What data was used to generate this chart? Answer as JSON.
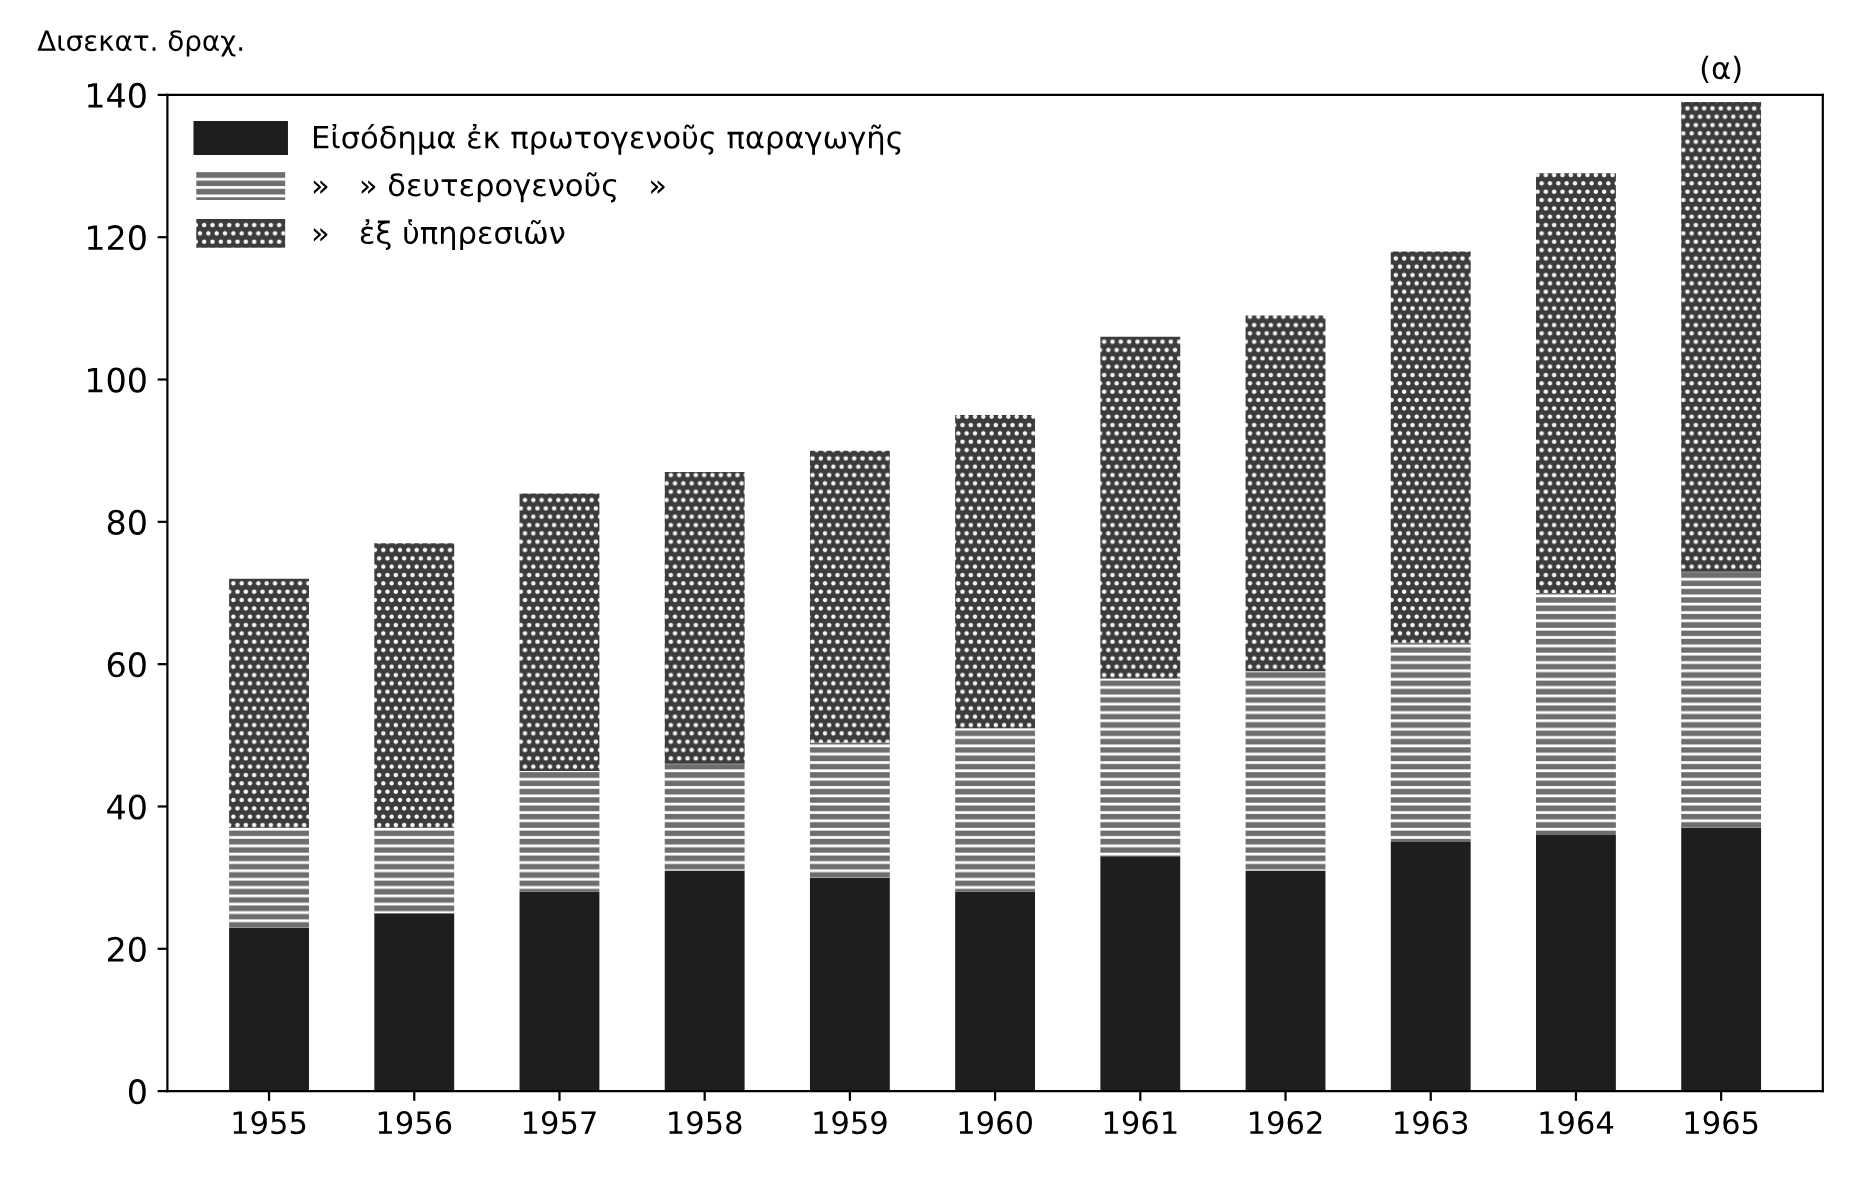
{
  "chart_data": {
    "type": "bar",
    "stacked": true,
    "ylabel": "Δισεκατ. δραχ.",
    "categories": [
      "1955",
      "1956",
      "1957",
      "1958",
      "1959",
      "1960",
      "1961",
      "1962",
      "1963",
      "1964",
      "1965"
    ],
    "series": [
      {
        "name": "Εἰσόδημα ἐκ πρωτογενοῦς παραγωγῆς",
        "color": "#1e1e1e",
        "values": [
          23,
          25,
          28,
          31,
          30,
          28,
          33,
          31,
          35,
          36,
          37
        ]
      },
      {
        "name": "»   » δευτερογενοῦς   »",
        "color": "#6e6e6e",
        "values": [
          14,
          12,
          17,
          15,
          19,
          23,
          25,
          28,
          28,
          34,
          36
        ]
      },
      {
        "name": "»   ἐξ ὑπηρεσιῶν",
        "color": "#3c3c3c",
        "values": [
          35,
          40,
          39,
          41,
          41,
          44,
          48,
          50,
          55,
          59,
          66
        ]
      }
    ],
    "annotations": [
      {
        "text": "(α)",
        "x": "1965",
        "y": 139
      }
    ],
    "ylim": [
      0,
      140
    ],
    "yticks": [
      0,
      20,
      40,
      60,
      80,
      100,
      120,
      140
    ],
    "grid": false,
    "legend": "top left"
  }
}
